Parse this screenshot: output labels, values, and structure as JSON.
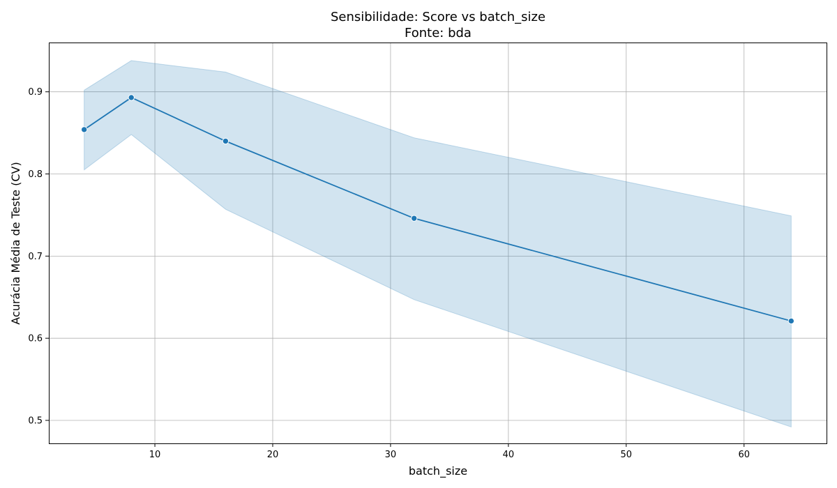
{
  "chart_data": {
    "type": "line",
    "title": "Sensibilidade: Score vs batch_size",
    "subtitle": "Fonte: bda",
    "xlabel": "batch_size",
    "ylabel": "Acurácia Média de Teste (CV)",
    "xlim": [
      1,
      67
    ],
    "ylim": [
      0.472,
      0.96
    ],
    "xticks": [
      10,
      20,
      30,
      40,
      50,
      60
    ],
    "yticks": [
      0.5,
      0.6,
      0.7,
      0.8,
      0.9
    ],
    "grid": true,
    "x": [
      4,
      8,
      16,
      32,
      64
    ],
    "series": [
      {
        "values": [
          0.854,
          0.893,
          0.84,
          0.746,
          0.621
        ],
        "lower": [
          0.805,
          0.848,
          0.757,
          0.647,
          0.492
        ],
        "upper": [
          0.902,
          0.938,
          0.924,
          0.844,
          0.749
        ]
      }
    ],
    "colors": {
      "line": "#1f77b4",
      "band": "#1f77b4"
    }
  }
}
